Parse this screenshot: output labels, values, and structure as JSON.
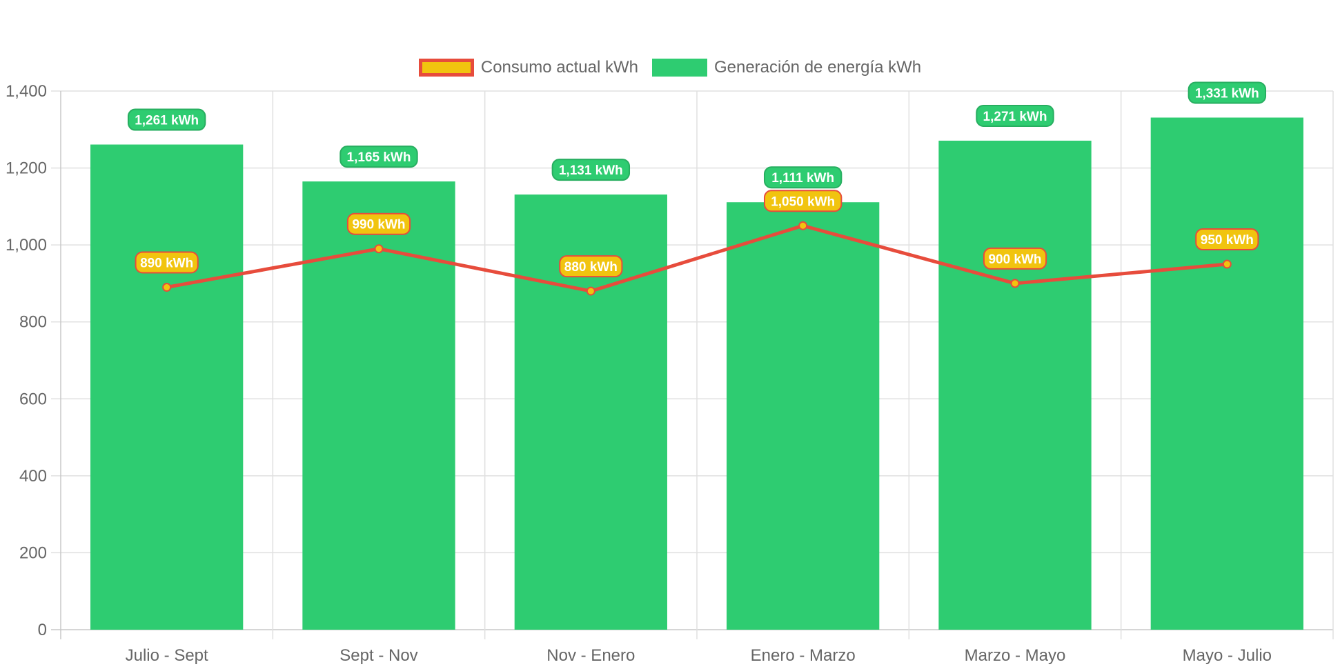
{
  "chart_data": {
    "type": "bar",
    "categories": [
      "Julio - Sept",
      "Sept - Nov",
      "Nov - Enero",
      "Enero - Marzo",
      "Marzo - Mayo",
      "Mayo - Julio"
    ],
    "series": [
      {
        "name": "Consumo actual kWh",
        "type": "line",
        "values": [
          890,
          990,
          880,
          1050,
          900,
          950
        ],
        "labels": [
          "890 kWh",
          "990 kWh",
          "880 kWh",
          "1,050 kWh",
          "900 kWh",
          "950 kWh"
        ],
        "color": "#e74c3c",
        "fill": "#f1c40f"
      },
      {
        "name": "Generación de energía kWh",
        "type": "bar",
        "values": [
          1261,
          1165,
          1131,
          1111,
          1271,
          1331
        ],
        "labels": [
          "1,261 kWh",
          "1,165 kWh",
          "1,131 kWh",
          "1,111 kWh",
          "1,271 kWh",
          "1,331 kWh"
        ],
        "color": "#2ecc71",
        "label_border": "#27ae60"
      }
    ],
    "y_ticks": [
      "0",
      "200",
      "400",
      "600",
      "800",
      "1,000",
      "1,200",
      "1,400"
    ],
    "ylim": [
      0,
      1400
    ],
    "grid": true,
    "legend": "top-center",
    "colors": {
      "grid": "#e0e0e0",
      "axis_text": "#666666"
    }
  }
}
